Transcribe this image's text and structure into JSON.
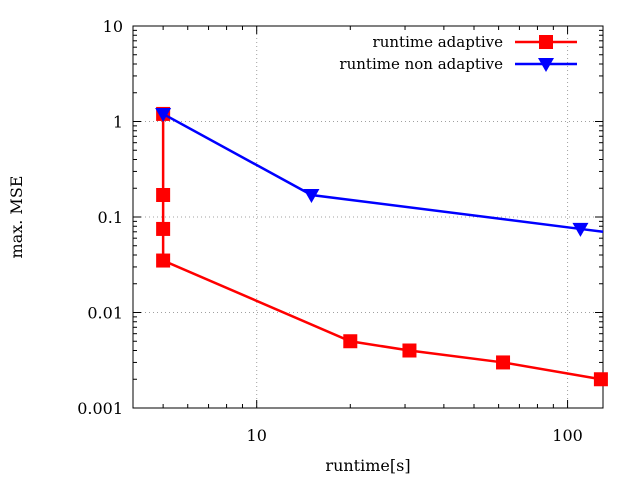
{
  "chart_data": {
    "type": "line",
    "xlabel": "runtime[s]",
    "ylabel": "max. MSE",
    "x_scale": "log",
    "y_scale": "log",
    "xlim": [
      4.0,
      130
    ],
    "ylim": [
      0.001,
      10
    ],
    "x_ticks": [
      {
        "value": 10,
        "label": "10"
      },
      {
        "value": 100,
        "label": "100"
      }
    ],
    "y_ticks": [
      {
        "value": 0.001,
        "label": "0.001"
      },
      {
        "value": 0.01,
        "label": "0.01"
      },
      {
        "value": 0.1,
        "label": "0.1"
      },
      {
        "value": 1,
        "label": "1"
      },
      {
        "value": 10,
        "label": "10"
      }
    ],
    "grid": true,
    "legend_position": "top-right",
    "series": [
      {
        "name": "runtime adaptive",
        "color": "#ff0000",
        "marker": "square",
        "x": [
          5.0,
          5.0,
          5.0,
          5.0,
          20,
          31,
          62,
          128
        ],
        "y": [
          1.2,
          0.17,
          0.075,
          0.035,
          0.005,
          0.004,
          0.003,
          0.002
        ]
      },
      {
        "name": "runtime non adaptive",
        "color": "#0000ff",
        "marker": "triangle-down",
        "x": [
          5.0,
          15,
          110,
          140
        ],
        "y": [
          1.2,
          0.17,
          0.075,
          0.07
        ]
      }
    ]
  }
}
